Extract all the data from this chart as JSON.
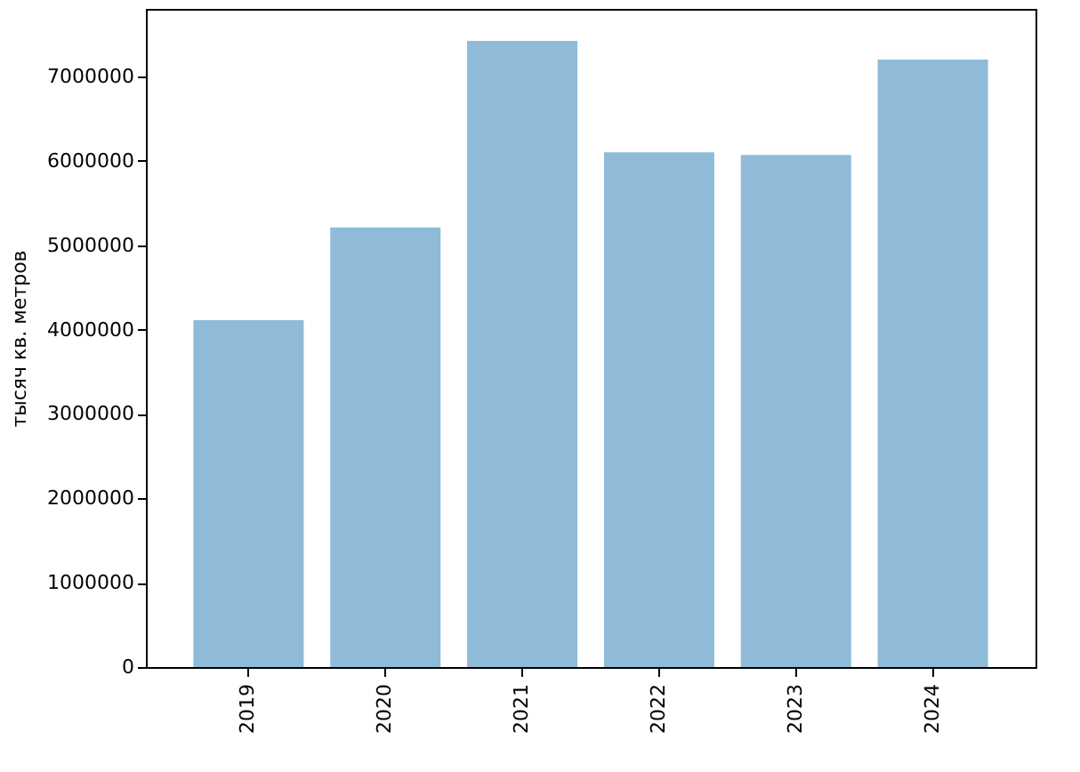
{
  "chart_data": {
    "type": "bar",
    "ylabel": "тысяч кв. метров",
    "categories": [
      "2019",
      "2020",
      "2021",
      "2022",
      "2023",
      "2024"
    ],
    "values": [
      4110000,
      5210000,
      7420000,
      6100000,
      6070000,
      7200000
    ],
    "color": "#8fbbd9",
    "ylim": [
      0,
      7800000
    ],
    "yticks": [
      0,
      1000000,
      2000000,
      3000000,
      4000000,
      5000000,
      6000000,
      7000000
    ],
    "grid": false
  }
}
